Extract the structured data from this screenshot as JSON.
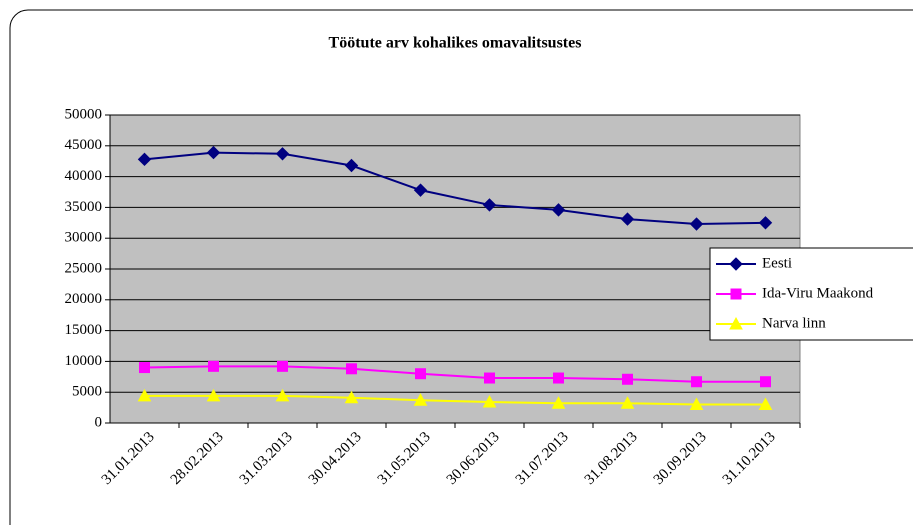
{
  "chart_data": {
    "type": "line",
    "title": "Töötute arv kohalikes omavalitsustes",
    "categories": [
      "31.01.2013",
      "28.02.2013",
      "31.03.2013",
      "30.04.2013",
      "31.05.2013",
      "30.06.2013",
      "31.07.2013",
      "31.08.2013",
      "30.09.2013",
      "31.10.2013"
    ],
    "series": [
      {
        "name": "Eesti",
        "color": "#000080",
        "marker": "diamond",
        "values": [
          42800,
          43900,
          43700,
          41800,
          37800,
          35400,
          34600,
          33100,
          32300,
          32500
        ]
      },
      {
        "name": "Ida-Viru Maakond",
        "color": "#FF00FF",
        "marker": "square",
        "values": [
          9000,
          9200,
          9200,
          8800,
          8000,
          7300,
          7300,
          7100,
          6700,
          6700
        ]
      },
      {
        "name": "Narva linn",
        "color": "#FFFF00",
        "marker": "triangle",
        "values": [
          4400,
          4400,
          4400,
          4100,
          3700,
          3400,
          3200,
          3200,
          3000,
          3000
        ]
      }
    ],
    "ylim": [
      0,
      50000
    ],
    "yticks": [
      0,
      5000,
      10000,
      15000,
      20000,
      25000,
      30000,
      35000,
      40000,
      45000,
      50000
    ],
    "grid": true,
    "legend": "right"
  }
}
